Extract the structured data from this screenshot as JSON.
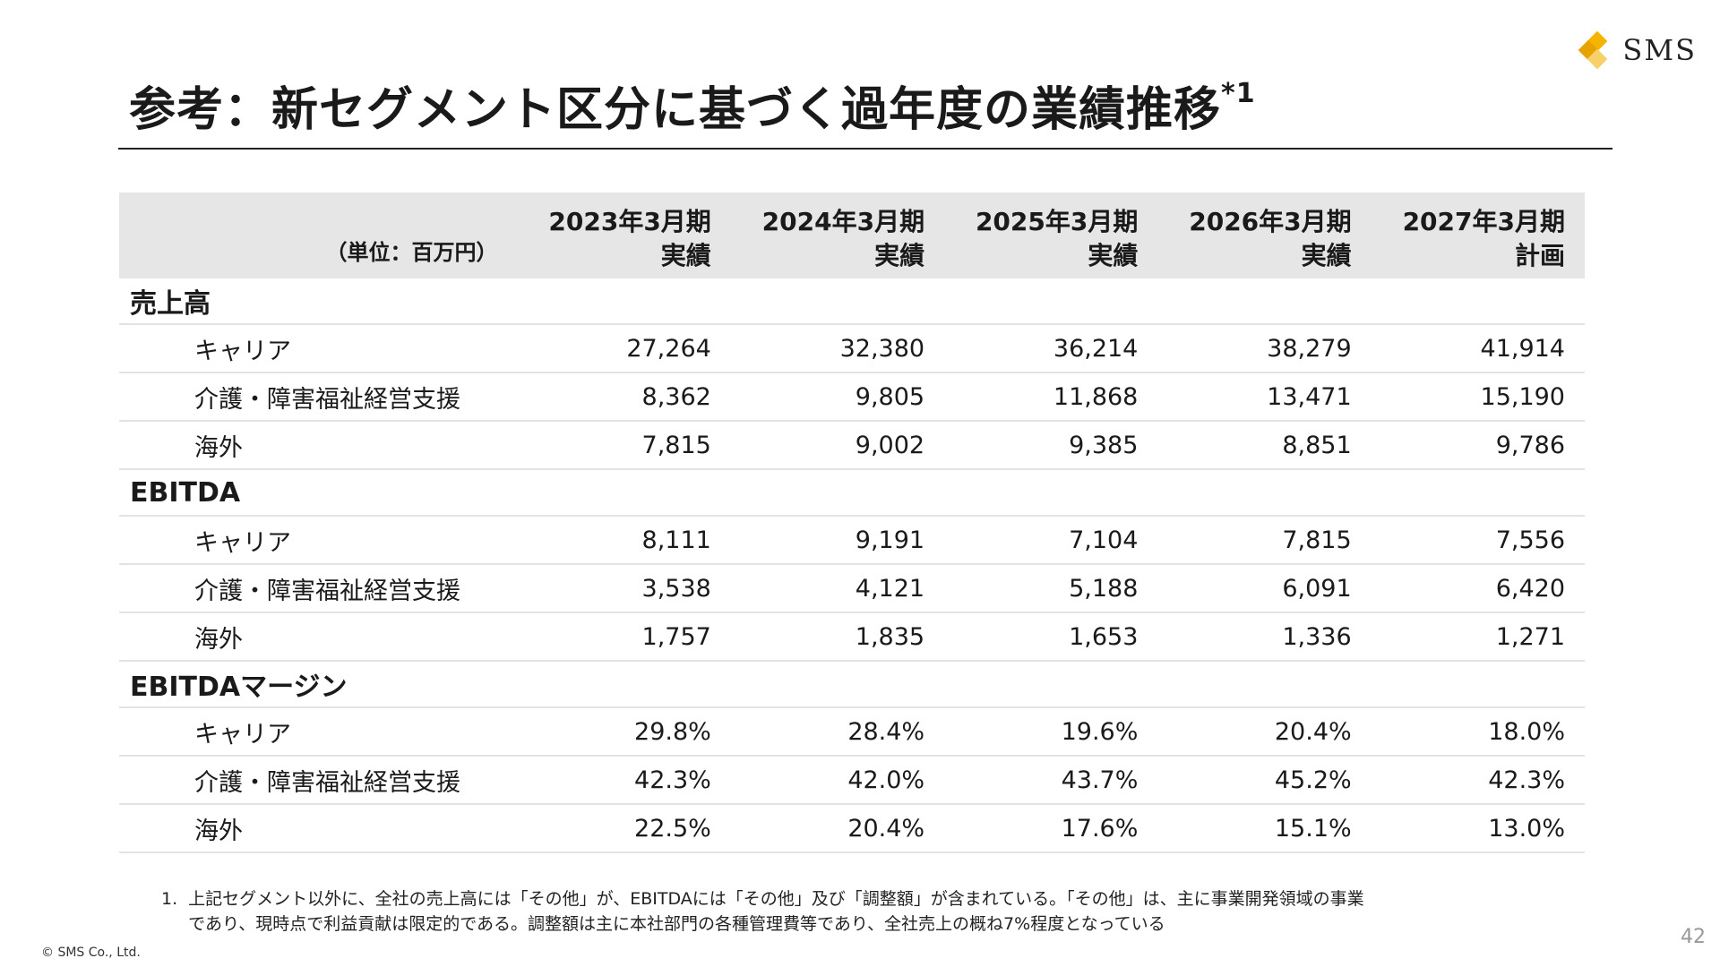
{
  "logo": {
    "text": "SMS",
    "mark_colors": [
      "#f5b400",
      "#e8a200",
      "#f7d06a"
    ]
  },
  "title": {
    "text": "参考：新セグメント区分に基づく過年度の業績推移",
    "superscript": "*1"
  },
  "table": {
    "unit_label": "（単位：百万円）",
    "columns": [
      {
        "year": "2023年3月期",
        "kind": "実績"
      },
      {
        "year": "2024年3月期",
        "kind": "実績"
      },
      {
        "year": "2025年3月期",
        "kind": "実績"
      },
      {
        "year": "2026年3月期",
        "kind": "実績"
      },
      {
        "year": "2027年3月期",
        "kind": "計画"
      }
    ],
    "sections": [
      {
        "title": "売上高",
        "rows": [
          {
            "label": "キャリア",
            "values": [
              "27,264",
              "32,380",
              "36,214",
              "38,279",
              "41,914"
            ]
          },
          {
            "label": "介護・障害福祉経営支援",
            "values": [
              "8,362",
              "9,805",
              "11,868",
              "13,471",
              "15,190"
            ]
          },
          {
            "label": "海外",
            "values": [
              "7,815",
              "9,002",
              "9,385",
              "8,851",
              "9,786"
            ]
          }
        ]
      },
      {
        "title": "EBITDA",
        "rows": [
          {
            "label": "キャリア",
            "values": [
              "8,111",
              "9,191",
              "7,104",
              "7,815",
              "7,556"
            ]
          },
          {
            "label": "介護・障害福祉経営支援",
            "values": [
              "3,538",
              "4,121",
              "5,188",
              "6,091",
              "6,420"
            ]
          },
          {
            "label": "海外",
            "values": [
              "1,757",
              "1,835",
              "1,653",
              "1,336",
              "1,271"
            ]
          }
        ]
      },
      {
        "title": "EBITDAマージン",
        "rows": [
          {
            "label": "キャリア",
            "values": [
              "29.8%",
              "28.4%",
              "19.6%",
              "20.4%",
              "18.0%"
            ]
          },
          {
            "label": "介護・障害福祉経営支援",
            "values": [
              "42.3%",
              "42.0%",
              "43.7%",
              "45.2%",
              "42.3%"
            ]
          },
          {
            "label": "海外",
            "values": [
              "22.5%",
              "20.4%",
              "17.6%",
              "15.1%",
              "13.0%"
            ]
          }
        ]
      }
    ]
  },
  "footnote": {
    "number": "1.",
    "line1": "上記セグメント以外に、全社の売上高には「その他」が、EBITDAには「その他」及び「調整額」が含まれている。「その他」は、主に事業開発領域の事業",
    "line2": "であり、現時点で利益貢献は限定的である。調整額は主に本社部門の各種管理費等であり、全社売上の概ね7%程度となっている"
  },
  "copyright": "© SMS Co., Ltd.",
  "page_number": "42"
}
